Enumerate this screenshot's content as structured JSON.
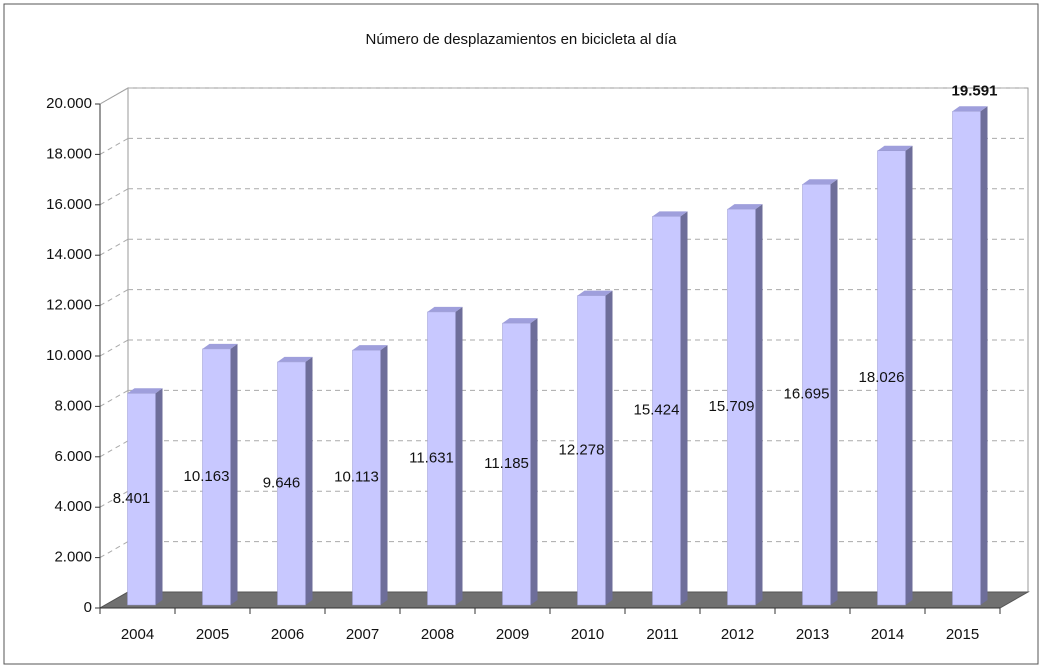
{
  "chart_data": {
    "type": "bar3d",
    "title": "Número de desplazamientos en bicicleta al día",
    "categories": [
      "2004",
      "2005",
      "2006",
      "2007",
      "2008",
      "2009",
      "2010",
      "2011",
      "2012",
      "2013",
      "2014",
      "2015"
    ],
    "values": [
      8401,
      10163,
      9646,
      10113,
      11631,
      11185,
      12278,
      15424,
      15709,
      16695,
      18026,
      19591
    ],
    "value_labels": [
      "8.401",
      "10.163",
      "9.646",
      "10.113",
      "11.631",
      "11.185",
      "12.278",
      "15.424",
      "15.709",
      "16.695",
      "18.026",
      "19.591"
    ],
    "color": "#c8c8ff",
    "ylim": [
      0,
      20000
    ],
    "yticks": [
      0,
      {
        "value": 2000,
        "label": "2.000"
      },
      {
        "value": 4000,
        "label": "4.000"
      },
      {
        "value": 6000,
        "label": "6.000"
      },
      {
        "value": 8000,
        "label": "8.000"
      },
      {
        "value": 10000,
        "label": "10.000"
      },
      {
        "value": 12000,
        "label": "12.000"
      },
      {
        "value": 14000,
        "label": "14.000"
      },
      {
        "value": 16000,
        "label": "16.000"
      },
      {
        "value": 18000,
        "label": "18.000"
      },
      {
        "value": 20000,
        "label": "20.000"
      }
    ],
    "grid": true
  }
}
